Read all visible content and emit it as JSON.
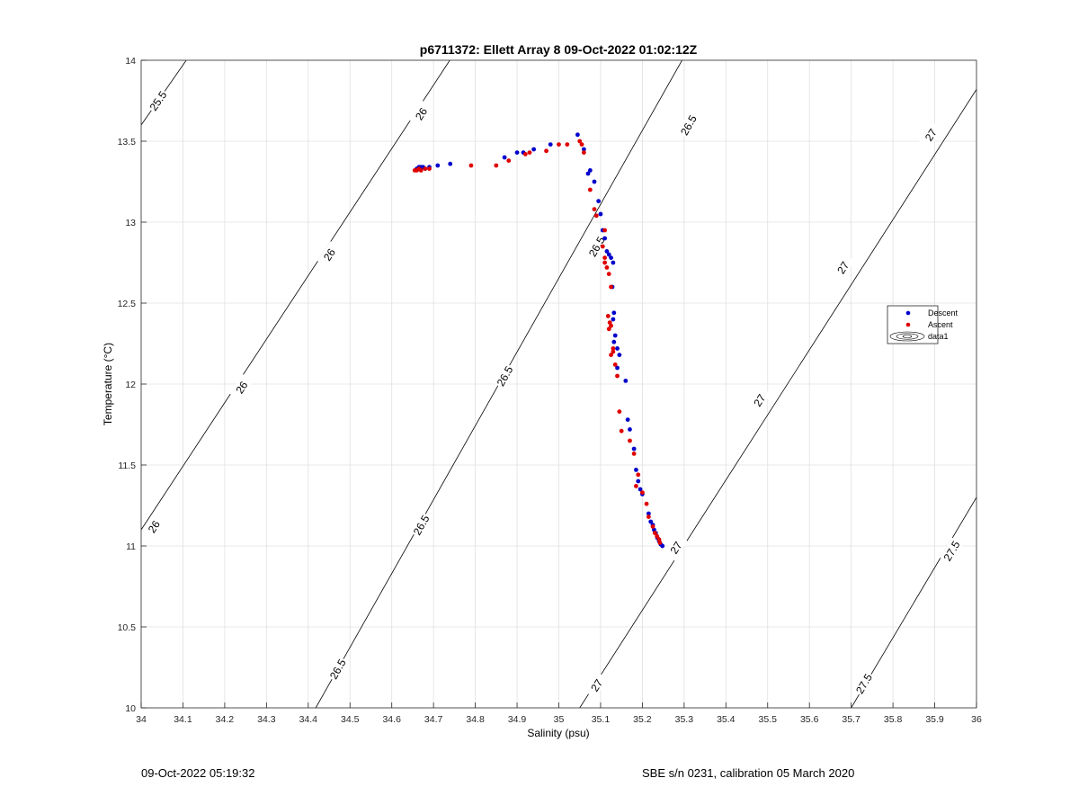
{
  "chart_data": {
    "type": "scatter",
    "title": "p6711372: Ellett Array 8 09-Oct-2022 01:02:12Z",
    "xlabel": "Salinity (psu)",
    "ylabel": "Temperature (°C)",
    "xlim": [
      34,
      36
    ],
    "ylim": [
      10,
      14
    ],
    "xticks": [
      34,
      34.1,
      34.2,
      34.3,
      34.4,
      34.5,
      34.6,
      34.7,
      34.8,
      34.9,
      35,
      35.1,
      35.2,
      35.3,
      35.4,
      35.5,
      35.6,
      35.7,
      35.8,
      35.9,
      36
    ],
    "xtick_labels": [
      "34",
      "34.1",
      "34.2",
      "34.3",
      "34.4",
      "34.5",
      "34.6",
      "34.7",
      "34.8",
      "34.9",
      "35",
      "35.1",
      "35.2",
      "35.3",
      "35.4",
      "35.5",
      "35.6",
      "35.7",
      "35.8",
      "35.9",
      "36"
    ],
    "yticks": [
      10,
      10.5,
      11,
      11.5,
      12,
      12.5,
      13,
      13.5,
      14
    ],
    "ytick_labels": [
      "10",
      "10.5",
      "11",
      "11.5",
      "12",
      "12.5",
      "13",
      "13.5",
      "14"
    ],
    "grid": true,
    "legend_position": "right",
    "colors": {
      "descent": "#0000cc",
      "ascent": "#e00000",
      "contour": "#000000",
      "grid": "#e0e0e0"
    },
    "contours": [
      {
        "level": 25.5,
        "label": "25.5",
        "points": [
          [
            34,
            13.6
          ],
          [
            34.108,
            14
          ]
        ],
        "labels": [
          [
            34.04,
            13.75
          ]
        ]
      },
      {
        "level": 26,
        "label": "26",
        "points": [
          [
            34,
            11.1
          ],
          [
            34.739,
            14
          ]
        ],
        "labels": [
          [
            34.03,
            11.12
          ],
          [
            34.24,
            11.98
          ],
          [
            34.45,
            12.8
          ],
          [
            34.67,
            13.67
          ]
        ]
      },
      {
        "level": 26.5,
        "label": "26.5",
        "points": [
          [
            34.418,
            10
          ],
          [
            35.295,
            14
          ]
        ],
        "labels": [
          [
            34.47,
            10.24
          ],
          [
            34.67,
            11.13
          ],
          [
            34.87,
            12.05
          ],
          [
            35.09,
            12.85
          ],
          [
            35.31,
            13.6
          ]
        ]
      },
      {
        "level": 27,
        "label": "27",
        "points": [
          [
            35.05,
            10
          ],
          [
            36,
            13.82
          ]
        ],
        "labels": [
          [
            35.09,
            10.14
          ],
          [
            35.28,
            10.99
          ],
          [
            35.48,
            11.9
          ],
          [
            35.68,
            12.72
          ],
          [
            35.89,
            13.54
          ]
        ]
      },
      {
        "level": 27.5,
        "label": "27.5",
        "points": [
          [
            35.7,
            10
          ],
          [
            36,
            11.3
          ]
        ],
        "labels": [
          [
            35.73,
            10.15
          ],
          [
            35.94,
            10.97
          ]
        ]
      }
    ],
    "series": [
      {
        "name": "Descent",
        "marker": "dot",
        "x": [
          34.66,
          34.665,
          34.67,
          34.675,
          34.68,
          34.69,
          34.71,
          34.74,
          34.87,
          34.9,
          34.915,
          34.94,
          34.98,
          35.045,
          35.06,
          35.07,
          35.075,
          35.085,
          35.095,
          35.1,
          35.105,
          35.11,
          35.115,
          35.12,
          35.125,
          35.13,
          35.128,
          35.132,
          35.13,
          35.135,
          35.132,
          35.14,
          35.145,
          35.14,
          35.16,
          35.165,
          35.17,
          35.18,
          35.185,
          35.19,
          35.195,
          35.2,
          35.215,
          35.22,
          35.225,
          35.228,
          35.232,
          35.236,
          35.24,
          35.244,
          35.248
        ],
        "y": [
          13.33,
          13.34,
          13.34,
          13.34,
          13.33,
          13.34,
          13.35,
          13.36,
          13.4,
          13.43,
          13.43,
          13.45,
          13.48,
          13.54,
          13.45,
          13.3,
          13.32,
          13.25,
          13.13,
          13.05,
          12.95,
          12.9,
          12.82,
          12.8,
          12.78,
          12.75,
          12.6,
          12.44,
          12.4,
          12.3,
          12.26,
          12.22,
          12.18,
          12.1,
          12.02,
          11.78,
          11.72,
          11.6,
          11.47,
          11.4,
          11.35,
          11.32,
          11.2,
          11.15,
          11.13,
          11.1,
          11.08,
          11.05,
          11.03,
          11.01,
          11.0
        ]
      },
      {
        "name": "Ascent",
        "marker": "dot",
        "x": [
          34.655,
          34.66,
          34.665,
          34.67,
          34.68,
          34.69,
          34.79,
          34.85,
          34.88,
          34.92,
          34.93,
          34.97,
          35.0,
          35.02,
          35.05,
          35.055,
          35.06,
          35.075,
          35.085,
          35.09,
          35.11,
          35.105,
          35.11,
          35.115,
          35.11,
          35.12,
          35.125,
          35.118,
          35.122,
          35.125,
          35.12,
          35.13,
          35.125,
          35.135,
          35.13,
          35.14,
          35.145,
          35.15,
          35.17,
          35.18,
          35.19,
          35.185,
          35.2,
          35.21,
          35.215,
          35.225,
          35.23,
          35.235,
          35.24,
          35.242
        ],
        "y": [
          13.32,
          13.32,
          13.33,
          13.32,
          13.33,
          13.33,
          13.35,
          13.35,
          13.38,
          13.42,
          13.43,
          13.44,
          13.48,
          13.48,
          13.5,
          13.48,
          13.43,
          13.2,
          13.08,
          13.04,
          12.95,
          12.85,
          12.78,
          12.72,
          12.75,
          12.68,
          12.6,
          12.42,
          12.38,
          12.36,
          12.34,
          12.2,
          12.18,
          12.12,
          12.22,
          12.05,
          11.83,
          11.71,
          11.65,
          11.57,
          11.44,
          11.37,
          11.33,
          11.26,
          11.18,
          11.12,
          11.08,
          11.06,
          11.04,
          11.02
        ]
      }
    ],
    "legend": {
      "entries": [
        {
          "label": "Descent",
          "symbol": "dot",
          "color": "#0000cc"
        },
        {
          "label": "Ascent",
          "symbol": "dot",
          "color": "#e00000"
        },
        {
          "label": "data1",
          "symbol": "contour-icon",
          "color": "#000000"
        }
      ]
    }
  },
  "footer": {
    "left": "09-Oct-2022 05:19:32",
    "right": "SBE s/n 0231, calibration 05 March 2020"
  }
}
